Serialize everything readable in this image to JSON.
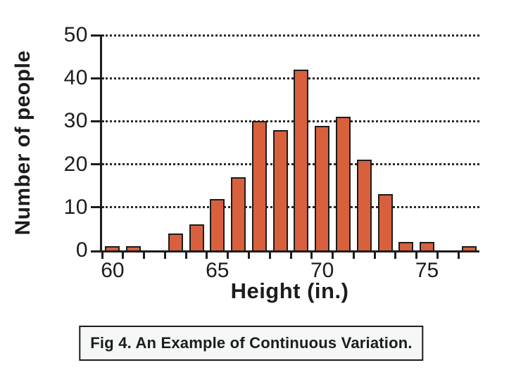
{
  "figure": {
    "caption": "Fig 4. An Example of Continuous Variation."
  },
  "chart_data": {
    "type": "bar",
    "title": "",
    "xlabel": "Height (in.)",
    "ylabel": "Number of people",
    "x": [
      60,
      61,
      62,
      63,
      64,
      65,
      66,
      67,
      68,
      69,
      70,
      71,
      72,
      73,
      74,
      75,
      76,
      77
    ],
    "values": [
      1,
      1,
      0,
      4,
      6,
      12,
      17,
      30,
      28,
      42,
      29,
      31,
      21,
      13,
      2,
      2,
      0,
      1
    ],
    "xticks": [
      60,
      65,
      70,
      75
    ],
    "yticks": [
      0,
      10,
      20,
      30,
      40,
      50
    ],
    "ylim": [
      0,
      50
    ],
    "grid": "horizontal-dotted",
    "legend": "none",
    "colors": {
      "bar_fill": "#D9603D",
      "bar_border": "#1c1c1c",
      "axis": "#1c1c1c",
      "gridline": "#2a2a2a",
      "caption_bg": "#F4F7F6",
      "caption_border": "#1c1c1c",
      "text": "#1c1c1c"
    }
  }
}
